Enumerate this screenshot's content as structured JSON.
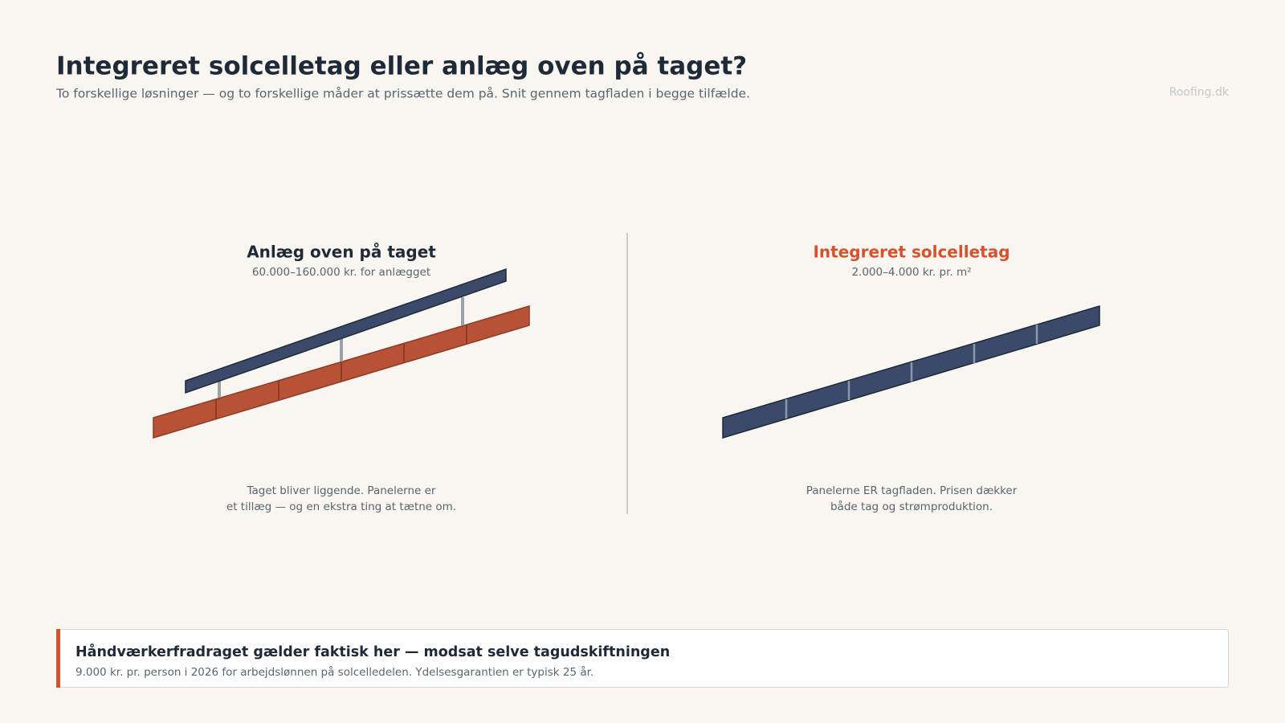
{
  "header": {
    "title": "Integreret solcelletag eller anlæg oven på taget?",
    "subtitle": "To forskellige løsninger — og to forskellige måder at prissætte dem på. Snit gennem tagfladen i begge tilfælde.",
    "brand": "Roofing.dk"
  },
  "panels": [
    {
      "heading": "Anlæg oven på taget",
      "price": "60.000–160.000 kr. for anlægget",
      "caption": [
        "Taget bliver liggende. Panelerne er",
        "et tillæg — og en ekstra ting at tætne om."
      ]
    },
    {
      "heading": "Integreret solcelletag",
      "price": "2.000–4.000 kr. pr. m²",
      "caption": [
        "Panelerne ER tagfladen. Prisen dækker",
        "både tag og strømproduktion."
      ]
    }
  ],
  "note": {
    "title": "Håndværkerfradraget gælder faktisk her — modsat selve tagudskiftningen",
    "text": "9.000 kr. pr. person i 2026 for arbejdslønnen på solcelledelen. Ydelsesgarantien er typisk 25 år."
  }
}
